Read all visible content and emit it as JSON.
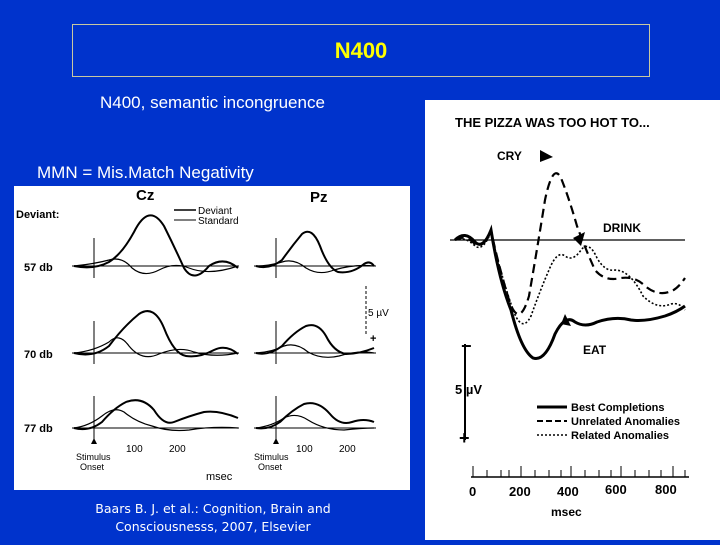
{
  "slide": {
    "title": "N400",
    "subtitle_n400": "N400, semantic incongruence",
    "subtitle_mmn": "MMN = Mis.Match Negativity",
    "citation_line1": "Baars B. J. et al.: Cognition, Brain and",
    "citation_line2": "Consciousnesss, 2007, Elsevier"
  },
  "left_figure": {
    "electrode_cz": "Cz",
    "electrode_pz": "Pz",
    "deviant_label": "Deviant:",
    "legend_deviant": "Deviant",
    "legend_standard": "Standard",
    "rows": [
      "57 db",
      "70 db",
      "77 db"
    ],
    "scale_label": "5 µV",
    "plus": "+",
    "tick_100": "100",
    "tick_200": "200",
    "stimulus": "Stimulus",
    "onset": "Onset",
    "xunit": "msec"
  },
  "right_figure": {
    "sentence": "THE PIZZA WAS TOO HOT TO...",
    "word_cry": "CRY",
    "word_drink": "DRINK",
    "word_eat": "EAT",
    "minus": "−",
    "plus": "+",
    "scale_label": "5 µV",
    "legend": [
      "Best Completions",
      "Unrelated Anomalies",
      "Related Anomalies"
    ],
    "ticks": [
      "0",
      "200",
      "400",
      "600",
      "800"
    ],
    "xunit": "msec"
  }
}
